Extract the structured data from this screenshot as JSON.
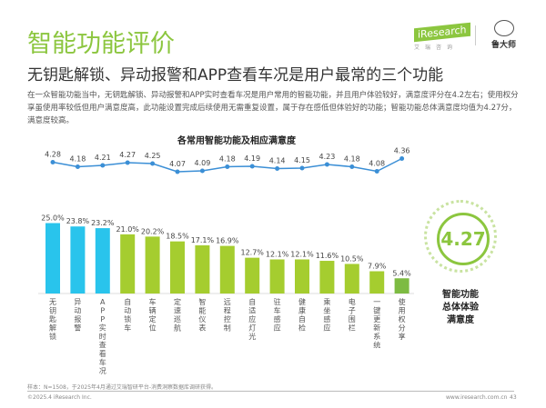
{
  "header": {
    "title": "智能功能评价",
    "subtitle": "无钥匙解锁、异动报警和APP查看车况是用户最常的三个功能",
    "description": "在一众智能功能当中，无钥匙解锁、异动报警和APP实时查看车况是用户常用的智能功能，并且用户体验较好，满意度评分在4.2左右；使用权分享虽使用率较低但用户满意度高，此功能设置完成后续使用无需重复设置，属于存在感低但体验好的功能；智能功能总体满意度均值为4.27分，满意度较高。",
    "logo_text": "iResearch",
    "logo_sub": "艾瑞咨询",
    "partner_logo": "鲁大师"
  },
  "chart_data": {
    "type": "bar+line",
    "title": "各常用智能功能及相应满意度",
    "categories": [
      "无钥匙解锁",
      "异动报警",
      "APP实时查看车况",
      "自动锁车",
      "车辆定位",
      "定速巡航",
      "智能仪表",
      "远程控制",
      "自适应灯光",
      "驻车感应",
      "健康自检",
      "乘坐感应",
      "电子围栏",
      "一键更新系统",
      "使用权分享"
    ],
    "bar_values": [
      25.0,
      23.8,
      23.2,
      21.0,
      20.2,
      18.5,
      17.1,
      16.9,
      12.7,
      12.1,
      12.1,
      11.6,
      10.5,
      7.9,
      5.4
    ],
    "bar_labels": [
      "25.0%",
      "23.8%",
      "23.2%",
      "21.0%",
      "20.2%",
      "18.5%",
      "17.1%",
      "16.9%",
      "12.7%",
      "12.1%",
      "12.1%",
      "11.6%",
      "10.5%",
      "7.9%",
      "5.4%"
    ],
    "line_values": [
      4.28,
      4.18,
      4.21,
      4.27,
      4.25,
      4.07,
      4.09,
      4.18,
      4.19,
      4.14,
      4.15,
      4.23,
      4.18,
      4.08,
      4.36
    ],
    "colors": {
      "top3": "#29c4ec",
      "others": "#a5cd2f",
      "last": "#7dbb42",
      "line": "#3b8fd6"
    }
  },
  "summary": {
    "value": "4.27",
    "label": [
      "智能功能",
      "总体体验",
      "满意度"
    ]
  },
  "footer": {
    "sample": "样本：N=1508，于2025年4月通过艾瑞智研平台-消费洞察数据库调研获得。",
    "copyright": "©2025.4 iResearch Inc.",
    "url": "www.iresearch.com.cn",
    "page": "43"
  }
}
